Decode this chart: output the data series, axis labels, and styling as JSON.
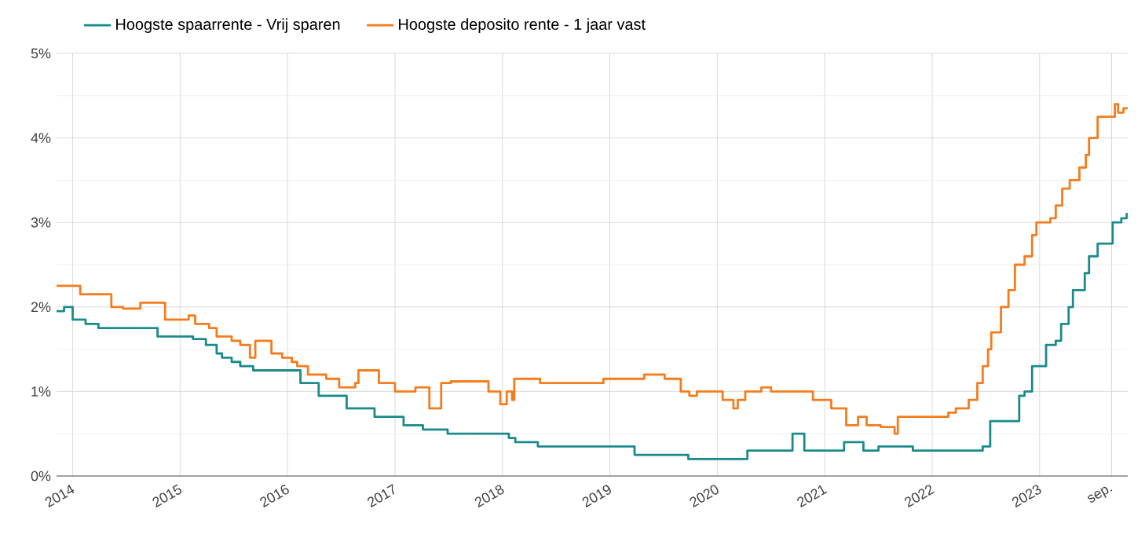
{
  "chart_data": {
    "type": "step",
    "series": [
      {
        "name": "Hoogste spaarrente - Vrij sparen",
        "color": "#1b8a8a",
        "x": [
          2013.85,
          2013.92,
          2014.0,
          2014.12,
          2014.24,
          2014.79,
          2015.12,
          2015.24,
          2015.34,
          2015.39,
          2015.48,
          2015.56,
          2015.68,
          2016.12,
          2016.29,
          2016.55,
          2016.81,
          2017.08,
          2017.26,
          2017.49,
          2018.06,
          2018.12,
          2018.33,
          2019.23,
          2019.73,
          2020.28,
          2020.7,
          2020.81,
          2021.18,
          2021.36,
          2021.5,
          2021.82,
          2022.47,
          2022.54,
          2022.81,
          2022.86,
          2022.93,
          2023.06,
          2023.15,
          2023.2,
          2023.27,
          2023.31,
          2023.42,
          2023.46,
          2023.54,
          2023.68,
          2023.76,
          2023.81,
          2023.82
        ],
        "values": [
          1.95,
          2.0,
          1.85,
          1.8,
          1.75,
          1.65,
          1.62,
          1.55,
          1.45,
          1.4,
          1.35,
          1.3,
          1.25,
          1.1,
          0.95,
          0.8,
          0.7,
          0.6,
          0.55,
          0.5,
          0.45,
          0.4,
          0.35,
          0.25,
          0.2,
          0.3,
          0.5,
          0.3,
          0.4,
          0.3,
          0.35,
          0.3,
          0.35,
          0.65,
          0.95,
          1.0,
          1.3,
          1.55,
          1.6,
          1.8,
          2.0,
          2.2,
          2.4,
          2.6,
          2.75,
          3.0,
          3.05,
          3.1,
          3.1
        ]
      },
      {
        "name": "Hoogste deposito rente - 1 jaar vast",
        "color": "#f57c1c",
        "x": [
          2013.85,
          2014.07,
          2014.36,
          2014.47,
          2014.63,
          2014.86,
          2015.08,
          2015.14,
          2015.27,
          2015.34,
          2015.48,
          2015.56,
          2015.65,
          2015.7,
          2015.85,
          2015.95,
          2016.04,
          2016.09,
          2016.19,
          2016.36,
          2016.48,
          2016.63,
          2016.66,
          2016.85,
          2017.0,
          2017.19,
          2017.32,
          2017.43,
          2017.52,
          2017.87,
          2017.98,
          2018.04,
          2018.09,
          2018.11,
          2018.35,
          2018.94,
          2019.32,
          2019.51,
          2019.66,
          2019.74,
          2019.81,
          2020.05,
          2020.15,
          2020.19,
          2020.26,
          2020.41,
          2020.5,
          2020.89,
          2021.06,
          2021.2,
          2021.31,
          2021.39,
          2021.52,
          2021.65,
          2021.68,
          2022.15,
          2022.22,
          2022.34,
          2022.42,
          2022.47,
          2022.52,
          2022.55,
          2022.64,
          2022.71,
          2022.77,
          2022.86,
          2022.93,
          2022.97,
          2023.1,
          2023.15,
          2023.21,
          2023.28,
          2023.37,
          2023.43,
          2023.46,
          2023.54,
          2023.7,
          2023.73,
          2023.78,
          2023.82
        ],
        "values": [
          2.25,
          2.15,
          2.0,
          1.98,
          2.05,
          1.85,
          1.9,
          1.8,
          1.75,
          1.65,
          1.6,
          1.55,
          1.4,
          1.6,
          1.45,
          1.4,
          1.35,
          1.3,
          1.2,
          1.15,
          1.05,
          1.1,
          1.25,
          1.1,
          1.0,
          1.05,
          0.8,
          1.1,
          1.12,
          1.0,
          0.85,
          1.0,
          0.9,
          1.15,
          1.1,
          1.15,
          1.2,
          1.15,
          1.0,
          0.95,
          1.0,
          0.9,
          0.8,
          0.9,
          1.0,
          1.05,
          1.0,
          0.9,
          0.8,
          0.6,
          0.7,
          0.6,
          0.58,
          0.5,
          0.7,
          0.75,
          0.8,
          0.9,
          1.1,
          1.3,
          1.5,
          1.7,
          2.0,
          2.2,
          2.5,
          2.6,
          2.85,
          3.0,
          3.05,
          3.2,
          3.4,
          3.5,
          3.65,
          3.8,
          4.0,
          4.25,
          4.4,
          4.3,
          4.35,
          4.35
        ]
      }
    ],
    "xlim": [
      2013.85,
      2023.82
    ],
    "xticks": [
      2014,
      2015,
      2016,
      2017,
      2018,
      2019,
      2020,
      2021,
      2022,
      2023,
      {
        "value": 2023.67,
        "label": "sep."
      }
    ],
    "ylim": [
      0,
      5
    ],
    "yticks": [
      {
        "value": 0,
        "label": "0%"
      },
      {
        "value": 1,
        "label": "1%"
      },
      {
        "value": 2,
        "label": "2%"
      },
      {
        "value": 3,
        "label": "3%"
      },
      {
        "value": 4,
        "label": "4%"
      },
      {
        "value": 5,
        "label": "5%"
      }
    ],
    "grid": true,
    "legend": "top"
  }
}
